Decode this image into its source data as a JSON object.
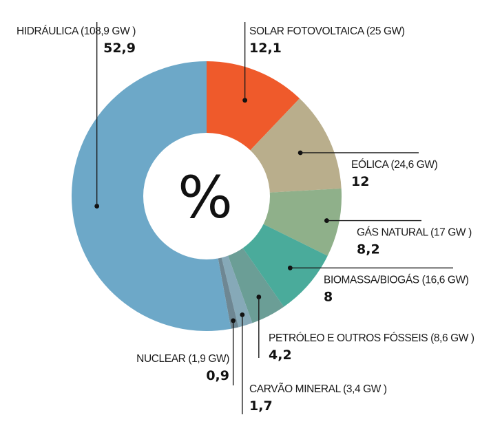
{
  "chart_data": {
    "type": "pie",
    "subtype": "donut",
    "center_label": "%",
    "slices": [
      {
        "name": "SOLAR FOTOVOLTAICA (25 GW)",
        "value": 12.1,
        "value_label": "12,1",
        "color": "#ef5a2b"
      },
      {
        "name": "EÓLICA (24,6 GW)",
        "value": 12,
        "value_label": "12",
        "color": "#b9ae8c"
      },
      {
        "name": "GÁS NATURAL (17 GW )",
        "value": 8.2,
        "value_label": "8,2",
        "color": "#8fb08a"
      },
      {
        "name": "BIOMASSA/BIOGÁS (16,6 GW)",
        "value": 8,
        "value_label": "8",
        "color": "#4aab9b"
      },
      {
        "name": "PETRÓLEO E OUTROS FÓSSEIS (8,6 GW )",
        "value": 4.2,
        "value_label": "4,2",
        "color": "#6b9e96"
      },
      {
        "name": "CARVÃO MINERAL (3,4 GW )",
        "value": 1.7,
        "value_label": "1,7",
        "color": "#86a9b8"
      },
      {
        "name": "NUCLEAR (1,9 GW)",
        "value": 0.9,
        "value_label": "0,9",
        "color": "#6e8793"
      },
      {
        "name": "HIDRÁULICA (108,9 GW )",
        "value": 52.9,
        "value_label": "52,9",
        "color": "#6da8c8"
      }
    ]
  }
}
